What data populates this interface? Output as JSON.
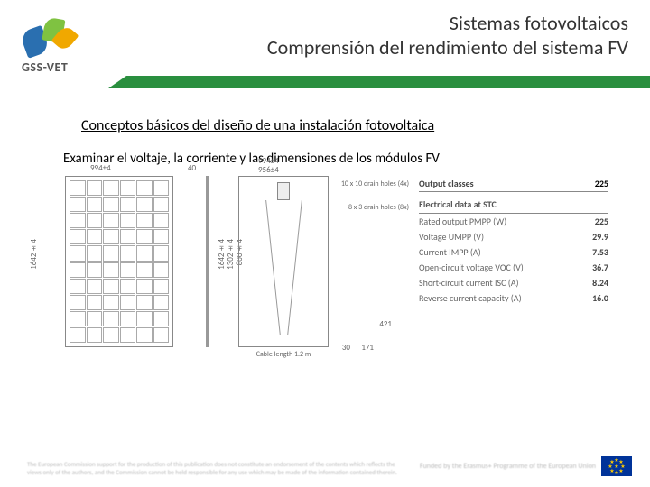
{
  "header": {
    "title1": "Sistemas fotovoltaicos",
    "title2": "Comprensión del rendimiento del sistema FV"
  },
  "logo": {
    "text": "GSS-VET"
  },
  "content": {
    "heading": "Conceptos básicos del diseño de una instalación fotovoltaica",
    "subheading": "Examinar el voltaje, la corriente y las dimensiones de los módulos FV"
  },
  "drawing": {
    "front": {
      "width_label": "994±4",
      "height_label": "1642±4",
      "cols": 6,
      "rows": 10
    },
    "side": {
      "thickness_label": "40"
    },
    "back": {
      "width_top": "994±4",
      "width_inner": "956±4",
      "height_label": "1642±4",
      "h_inner1": "1302±4",
      "h_inner2": "800±4",
      "drain1": "10 x 10\ndrain holes (4x)",
      "drain2": "8 x 3\ndrain holes (8x)",
      "cable_label": "Cable length 1.2 m",
      "bot_dim1": "30",
      "bot_dim2": "171",
      "bot_dim3": "421"
    }
  },
  "output": {
    "classes_label": "Output classes",
    "classes_value": "225",
    "section": "Electrical data at STC",
    "rows": [
      {
        "label": "Rated output PMPP (W)",
        "value": "225"
      },
      {
        "label": "Voltage UMPP (V)",
        "value": "29.9"
      },
      {
        "label": "Current IMPP (A)",
        "value": "7.53"
      },
      {
        "label": "Open-circuit voltage VOC (V)",
        "value": "36.7"
      },
      {
        "label": "Short-circuit current ISC (A)",
        "value": "8.24"
      },
      {
        "label": "Reverse current capacity (A)",
        "value": "16.0"
      }
    ]
  },
  "footer": {
    "disclaimer": "The European Commission support for the production of this publication does not constitute an endorsement of the contents which reflects the views only of the authors, and the Commission cannot be held responsible for any use which may be made of the information contained therein.",
    "eu_text": "Funded by the\nErasmus+ Programme\nof the European Union"
  }
}
